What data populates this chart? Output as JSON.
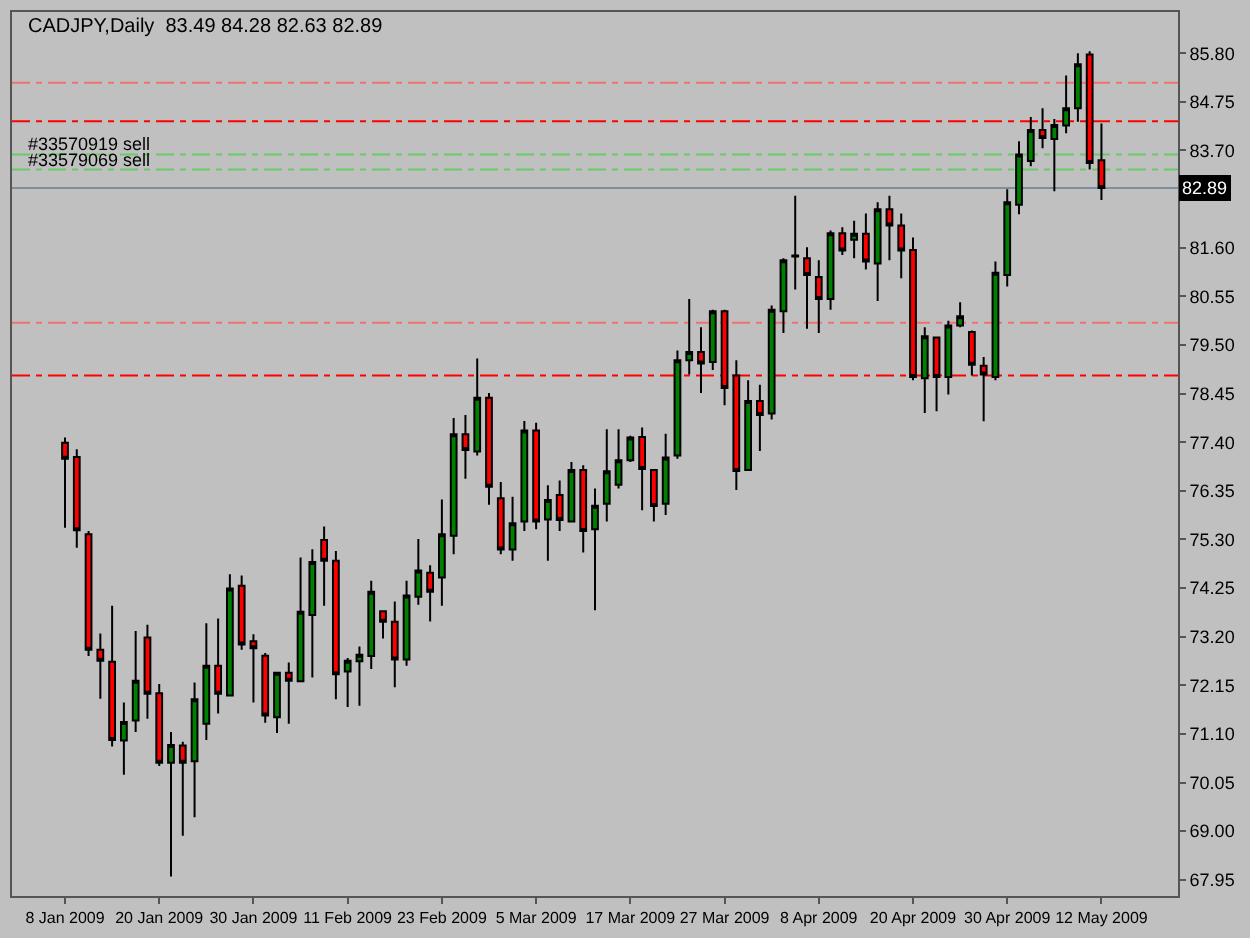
{
  "chart_data": {
    "type": "candlestick",
    "title": "CADJPY,Daily  83.49 84.28 82.63 82.89",
    "categories": [
      "8 Jan 2009",
      null,
      null,
      null,
      null,
      null,
      null,
      null,
      "20 Jan 2009",
      null,
      null,
      null,
      null,
      null,
      null,
      null,
      "30 Jan 2009",
      null,
      null,
      null,
      null,
      null,
      null,
      null,
      "11 Feb 2009",
      null,
      null,
      null,
      null,
      null,
      null,
      null,
      "23 Feb 2009",
      null,
      null,
      null,
      null,
      null,
      null,
      null,
      "5 Mar 2009",
      null,
      null,
      null,
      null,
      null,
      null,
      null,
      "17 Mar 2009",
      null,
      null,
      null,
      null,
      null,
      null,
      null,
      "27 Mar 2009",
      null,
      null,
      null,
      null,
      null,
      null,
      null,
      "8 Apr 2009",
      null,
      null,
      null,
      null,
      null,
      null,
      null,
      "20 Apr 2009",
      null,
      null,
      null,
      null,
      null,
      null,
      null,
      "30 Apr 2009",
      null,
      null,
      null,
      null,
      null,
      null,
      null,
      "12 May 2009"
    ],
    "ohlc": [
      [
        77.39,
        77.5,
        75.55,
        77.04
      ],
      [
        77.08,
        77.25,
        75.12,
        75.5
      ],
      [
        75.41,
        75.48,
        72.78,
        72.92
      ],
      [
        72.92,
        73.27,
        71.86,
        72.68
      ],
      [
        72.66,
        73.87,
        70.83,
        70.97
      ],
      [
        70.96,
        71.78,
        70.22,
        71.36
      ],
      [
        71.39,
        73.32,
        71.14,
        72.25
      ],
      [
        73.18,
        73.46,
        71.43,
        71.97
      ],
      [
        71.98,
        72.18,
        70.41,
        70.48
      ],
      [
        70.48,
        71.14,
        68.02,
        70.86
      ],
      [
        70.85,
        70.93,
        68.9,
        70.48
      ],
      [
        70.51,
        72.21,
        69.3,
        71.85
      ],
      [
        71.32,
        73.49,
        70.97,
        72.57
      ],
      [
        72.57,
        73.59,
        71.54,
        71.97
      ],
      [
        71.93,
        74.55,
        71.93,
        74.24
      ],
      [
        74.3,
        74.52,
        72.92,
        73.03
      ],
      [
        73.1,
        73.25,
        71.78,
        72.95
      ],
      [
        72.79,
        72.85,
        71.34,
        71.5
      ],
      [
        71.46,
        72.42,
        71.12,
        72.42
      ],
      [
        72.42,
        72.64,
        71.32,
        72.25
      ],
      [
        72.24,
        74.91,
        72.24,
        73.74
      ],
      [
        73.67,
        75.09,
        72.32,
        74.81
      ],
      [
        75.29,
        75.58,
        73.87,
        74.84
      ],
      [
        74.84,
        75.05,
        71.85,
        72.39
      ],
      [
        72.45,
        72.74,
        71.68,
        72.68
      ],
      [
        72.67,
        72.99,
        71.71,
        72.81
      ],
      [
        72.78,
        74.41,
        72.5,
        74.17
      ],
      [
        73.75,
        73.77,
        73.16,
        73.52
      ],
      [
        73.52,
        73.96,
        72.11,
        72.71
      ],
      [
        72.71,
        74.41,
        72.57,
        74.09
      ],
      [
        74.06,
        75.31,
        73.89,
        74.63
      ],
      [
        74.58,
        74.74,
        73.53,
        74.17
      ],
      [
        74.48,
        76.16,
        73.87,
        75.41
      ],
      [
        75.38,
        77.92,
        74.98,
        77.57
      ],
      [
        77.57,
        77.99,
        76.61,
        77.23
      ],
      [
        77.2,
        79.21,
        77.11,
        78.36
      ],
      [
        78.36,
        78.46,
        76.05,
        76.44
      ],
      [
        76.19,
        76.54,
        74.98,
        75.08
      ],
      [
        75.08,
        76.22,
        74.84,
        75.65
      ],
      [
        75.69,
        77.86,
        75.48,
        77.65
      ],
      [
        77.65,
        77.82,
        75.52,
        75.69
      ],
      [
        75.73,
        76.47,
        74.84,
        76.15
      ],
      [
        76.26,
        76.57,
        75.48,
        75.72
      ],
      [
        75.69,
        76.97,
        75.69,
        76.8
      ],
      [
        76.8,
        76.9,
        75.02,
        75.48
      ],
      [
        75.52,
        76.4,
        73.77,
        76.03
      ],
      [
        76.07,
        77.68,
        75.69,
        76.77
      ],
      [
        76.48,
        77.68,
        76.4,
        77.01
      ],
      [
        77.01,
        77.54,
        76.97,
        77.5
      ],
      [
        77.51,
        77.72,
        75.93,
        76.82
      ],
      [
        76.8,
        76.82,
        75.69,
        76.02
      ],
      [
        76.07,
        77.58,
        75.83,
        77.07
      ],
      [
        77.11,
        79.38,
        77.04,
        79.17
      ],
      [
        79.17,
        80.49,
        78.86,
        79.35
      ],
      [
        79.35,
        79.88,
        78.46,
        79.1
      ],
      [
        79.13,
        80.26,
        78.96,
        80.23
      ],
      [
        80.23,
        80.26,
        78.2,
        78.57
      ],
      [
        78.84,
        79.17,
        76.37,
        76.78
      ],
      [
        76.8,
        78.74,
        76.8,
        78.29
      ],
      [
        78.29,
        78.64,
        77.21,
        77.99
      ],
      [
        78.02,
        80.35,
        77.89,
        80.26
      ],
      [
        80.23,
        81.37,
        79.76,
        81.33
      ],
      [
        81.41,
        82.72,
        80.7,
        81.43
      ],
      [
        81.37,
        81.61,
        79.85,
        81.01
      ],
      [
        80.97,
        81.33,
        79.76,
        80.49
      ],
      [
        80.49,
        81.97,
        80.26,
        81.91
      ],
      [
        81.91,
        82.04,
        81.44,
        81.54
      ],
      [
        81.77,
        82.18,
        81.37,
        81.9
      ],
      [
        81.9,
        82.34,
        81.13,
        81.3
      ],
      [
        81.26,
        82.58,
        80.45,
        82.43
      ],
      [
        82.43,
        82.72,
        81.33,
        82.08
      ],
      [
        82.08,
        82.34,
        80.94,
        81.54
      ],
      [
        81.55,
        81.82,
        78.74,
        78.81
      ],
      [
        78.78,
        79.88,
        78.03,
        79.69
      ],
      [
        79.66,
        79.66,
        78.07,
        78.81
      ],
      [
        78.81,
        80.02,
        78.43,
        79.92
      ],
      [
        79.92,
        80.42,
        79.88,
        80.12
      ],
      [
        79.78,
        79.81,
        78.84,
        79.07
      ],
      [
        79.05,
        79.24,
        77.85,
        78.86
      ],
      [
        78.81,
        81.3,
        78.74,
        81.06
      ],
      [
        81.01,
        82.86,
        80.76,
        82.58
      ],
      [
        82.53,
        83.9,
        82.32,
        83.61
      ],
      [
        83.47,
        84.42,
        83.36,
        84.14
      ],
      [
        84.14,
        84.61,
        83.75,
        83.97
      ],
      [
        83.95,
        84.38,
        82.82,
        84.25
      ],
      [
        84.24,
        85.32,
        84.07,
        84.61
      ],
      [
        84.61,
        85.8,
        84.32,
        85.56
      ],
      [
        85.77,
        85.84,
        83.29,
        83.43
      ],
      [
        83.49,
        84.28,
        82.63,
        82.89
      ]
    ],
    "colors": [
      "#ff0000",
      "#ff0000",
      "#ff0000",
      "#ff0000",
      "#ff0000",
      "#008000",
      "#008000",
      "#ff0000",
      "#ff0000",
      "#008000",
      "#ff0000",
      "#008000",
      "#008000",
      "#ff0000",
      "#008000",
      "#ff0000",
      "#ff0000",
      "#ff0000",
      "#008000",
      "#ff0000",
      "#008000",
      "#008000",
      "#ff0000",
      "#ff0000",
      "#008000",
      "#008000",
      "#008000",
      "#ff0000",
      "#ff0000",
      "#008000",
      "#008000",
      "#ff0000",
      "#008000",
      "#008000",
      "#ff0000",
      "#008000",
      "#ff0000",
      "#ff0000",
      "#008000",
      "#008000",
      "#ff0000",
      "#008000",
      "#ff0000",
      "#008000",
      "#ff0000",
      "#008000",
      "#008000",
      "#008000",
      "#008000",
      "#ff0000",
      "#ff0000",
      "#008000",
      "#008000",
      "#008000",
      "#ff0000",
      "#008000",
      "#ff0000",
      "#ff0000",
      "#008000",
      "#ff0000",
      "#008000",
      "#008000",
      "#000000",
      "#ff0000",
      "#ff0000",
      "#008000",
      "#ff0000",
      "#008000",
      "#ff0000",
      "#008000",
      "#ff0000",
      "#ff0000",
      "#ff0000",
      "#008000",
      "#ff0000",
      "#008000",
      "#008000",
      "#ff0000",
      "#ff0000",
      "#008000",
      "#008000",
      "#008000",
      "#008000",
      "#ff0000",
      "#008000",
      "#008000",
      "#008000",
      "#ff0000",
      "#ff0000"
    ],
    "ylim": [
      67.6,
      86.69
    ],
    "yticks": [
      67.95,
      {
        "value": 69.0,
        "label": "69.00"
      },
      70.05,
      {
        "value": 71.1,
        "label": "71.10"
      },
      72.15,
      {
        "value": 73.2,
        "label": "73.20"
      },
      74.25,
      {
        "value": 75.3,
        "label": "75.30"
      },
      76.35,
      {
        "value": 77.4,
        "label": "77.40"
      },
      78.45,
      {
        "value": 79.5,
        "label": "79.50"
      },
      80.55,
      {
        "value": 81.6,
        "label": "81.60"
      },
      {
        "value": 83.7,
        "label": "83.70"
      },
      84.75,
      {
        "value": 85.8,
        "label": "85.80"
      }
    ],
    "ref_lines": [
      {
        "axis": "y",
        "value": 85.16,
        "color": "#f07070",
        "line_style": "dashdot"
      },
      {
        "axis": "y",
        "value": 84.33,
        "color": "#ff0000",
        "line_style": "dashdot"
      },
      {
        "axis": "y",
        "value": 83.61,
        "color": "#66cc66",
        "line_style": "dashdot",
        "label": "#33570919 sell"
      },
      {
        "axis": "y",
        "value": 83.29,
        "color": "#66cc66",
        "line_style": "dashdot",
        "label": "#33579069 sell"
      },
      {
        "axis": "y",
        "value": 82.89,
        "color": "#7890a0",
        "line_style": "solid",
        "label": "82.89"
      },
      {
        "axis": "y",
        "value": 79.98,
        "color": "#f07070",
        "line_style": "dashdot"
      },
      {
        "axis": "y",
        "value": 78.84,
        "color": "#ff0000",
        "line_style": "dashdot"
      }
    ],
    "grid": false
  }
}
